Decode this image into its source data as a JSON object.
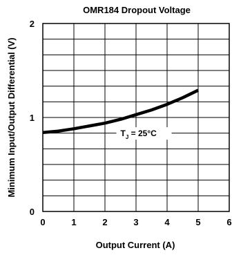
{
  "chart_data": {
    "type": "line",
    "title": "OMR184 Dropout Voltage",
    "xlabel": "Output Current (A)",
    "ylabel": "Minimum Input/Output Differential (V)",
    "xlim": [
      0,
      6
    ],
    "ylim": [
      0,
      2
    ],
    "x_ticks": [
      "0",
      "1",
      "2",
      "3",
      "4",
      "5",
      "6"
    ],
    "y_ticks": [
      "0",
      "1",
      "2"
    ],
    "grid": true,
    "annotation": {
      "main": "T",
      "sub": "J",
      "rest": " = 25°C",
      "x": 2.5,
      "y": 0.83
    },
    "series": [
      {
        "x": [
          0,
          0.5,
          1,
          1.5,
          2,
          2.5,
          3,
          3.5,
          4,
          4.5,
          5
        ],
        "values": [
          0.84,
          0.855,
          0.88,
          0.91,
          0.94,
          0.98,
          1.03,
          1.08,
          1.14,
          1.21,
          1.29
        ]
      }
    ]
  }
}
